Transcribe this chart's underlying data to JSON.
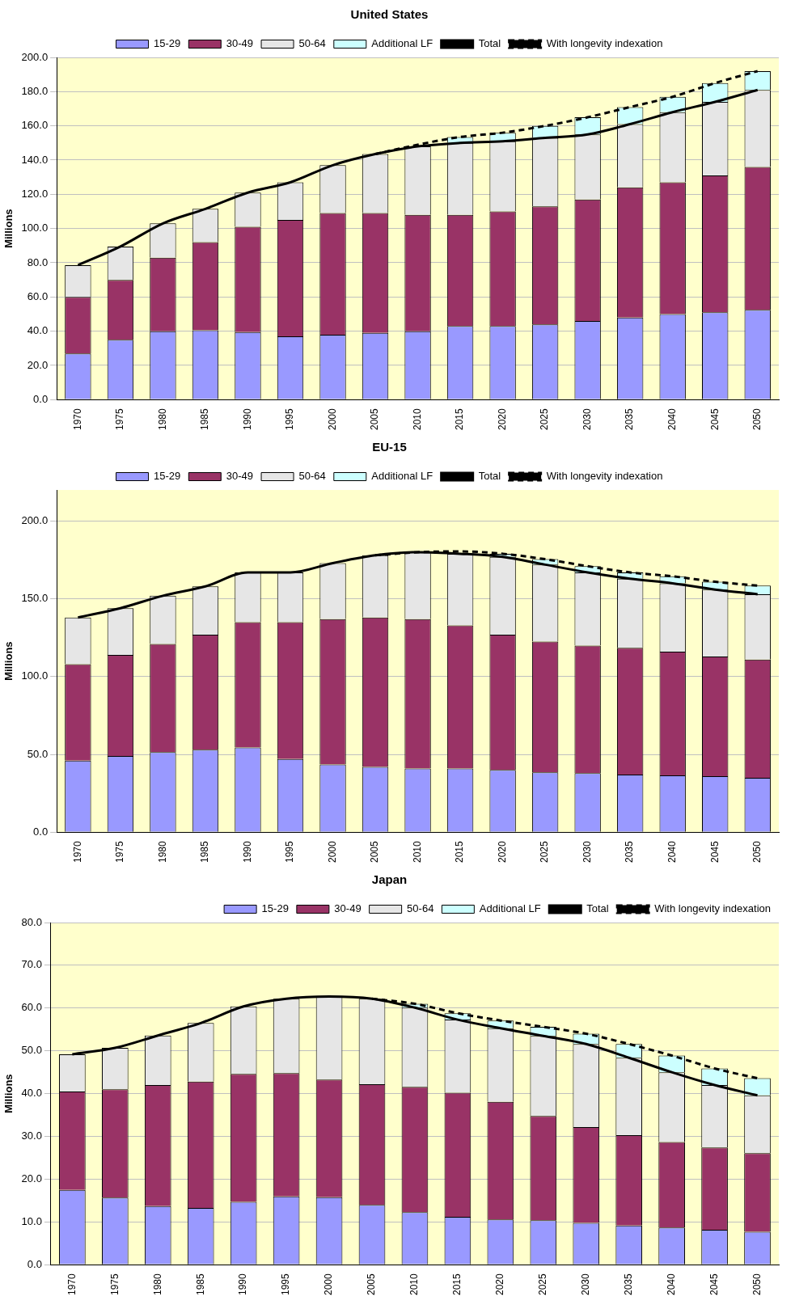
{
  "chart_data": [
    {
      "type": "bar",
      "title": "United States",
      "ylabel": "Millions",
      "stacked": true,
      "legend": "top",
      "grid": "y",
      "ylim": [
        0,
        200
      ],
      "yticks": [
        {
          "value": 0,
          "label": "0.0"
        },
        {
          "value": 20,
          "label": "20.0"
        },
        {
          "value": 40,
          "label": "40.0"
        },
        {
          "value": 60,
          "label": "60.0"
        },
        {
          "value": 80,
          "label": "80.0"
        },
        {
          "value": 100,
          "label": "100.0"
        },
        {
          "value": 120,
          "label": "120.0"
        },
        {
          "value": 140,
          "label": "140.0"
        },
        {
          "value": 160,
          "label": "160.0"
        },
        {
          "value": 180,
          "label": "180.0"
        },
        {
          "value": 200,
          "label": "200.0"
        }
      ],
      "categories": [
        "1970",
        "1975",
        "1980",
        "1985",
        "1990",
        "1995",
        "2000",
        "2005",
        "2010",
        "2015",
        "2020",
        "2025",
        "2030",
        "2035",
        "2040",
        "2045",
        "2050"
      ],
      "series": [
        {
          "name": "15-29",
          "color": "#9999ff",
          "values": [
            27,
            35,
            40,
            40.5,
            39.5,
            37,
            38,
            39,
            40,
            43,
            43,
            44,
            46,
            48,
            50,
            51,
            52.5
          ]
        },
        {
          "name": "30-49",
          "color": "#993366",
          "values": [
            33,
            35,
            43,
            51.5,
            61.5,
            68,
            71,
            70,
            68,
            65,
            67,
            69,
            71,
            76,
            77,
            80,
            83.5
          ]
        },
        {
          "name": "50-64",
          "color": "#e6e6e6",
          "values": [
            18.6,
            19.5,
            20,
            19.5,
            20,
            22,
            28,
            34.5,
            40,
            42,
            41,
            40,
            38,
            37,
            41,
            43,
            45
          ]
        },
        {
          "name": "Additional LF",
          "color": "#ccffff",
          "values": [
            null,
            null,
            null,
            null,
            null,
            null,
            null,
            null,
            null,
            3.5,
            5,
            7,
            10,
            10,
            9,
            11,
            11
          ]
        },
        {
          "name": "Total",
          "type": "line",
          "color": "#000000",
          "line_style": "solid",
          "values": [
            78.6,
            89.5,
            103,
            111.5,
            121,
            127,
            137,
            143.5,
            148,
            150,
            151,
            153,
            155,
            161,
            168,
            174,
            181
          ]
        },
        {
          "name": "With longevity indexation",
          "type": "line",
          "color": "#000000",
          "line_style": "dashed",
          "values": [
            null,
            null,
            null,
            null,
            null,
            null,
            null,
            143.5,
            149,
            153.5,
            156,
            160,
            165,
            171,
            177,
            185,
            192
          ]
        }
      ]
    },
    {
      "type": "bar",
      "title": "EU-15",
      "ylabel": "Millions",
      "stacked": true,
      "legend": "top",
      "grid": "y",
      "ylim": [
        0,
        220
      ],
      "yticks": [
        {
          "value": 0,
          "label": "0.0"
        },
        {
          "value": 50,
          "label": "50.0"
        },
        {
          "value": 100,
          "label": "100.0"
        },
        {
          "value": 150,
          "label": "150.0"
        },
        {
          "value": 200,
          "label": "200.0"
        }
      ],
      "categories": [
        "1970",
        "1975",
        "1980",
        "1985",
        "1990",
        "1995",
        "2000",
        "2005",
        "2010",
        "2015",
        "2020",
        "2025",
        "2030",
        "2035",
        "2040",
        "2045",
        "2050"
      ],
      "series": [
        {
          "name": "15-29",
          "color": "#9999ff",
          "values": [
            46,
            49,
            51.5,
            53,
            54.5,
            47,
            43.5,
            42,
            41,
            41,
            40,
            38.5,
            38,
            37,
            36.5,
            36,
            35
          ]
        },
        {
          "name": "30-49",
          "color": "#993366",
          "values": [
            62,
            65,
            69.5,
            74,
            80.5,
            88,
            93.5,
            96,
            96,
            92,
            87,
            84,
            82,
            81.5,
            79.5,
            77,
            76
          ]
        },
        {
          "name": "50-64",
          "color": "#e6e6e6",
          "values": [
            30,
            30,
            31,
            31,
            32,
            32,
            36,
            40,
            43,
            46,
            50,
            49.5,
            47,
            44.5,
            44,
            43,
            42
          ]
        },
        {
          "name": "Additional LF",
          "color": "#ccffff",
          "values": [
            null,
            null,
            null,
            null,
            null,
            null,
            null,
            null,
            null,
            null,
            2,
            3.5,
            4,
            4,
            4.5,
            5,
            5.5
          ]
        },
        {
          "name": "Total",
          "type": "line",
          "color": "#000000",
          "line_style": "solid",
          "values": [
            138,
            144,
            152,
            158,
            167,
            167,
            173,
            178,
            180,
            179,
            177,
            172,
            167,
            163,
            160,
            156,
            153
          ]
        },
        {
          "name": "With longevity indexation",
          "type": "line",
          "color": "#000000",
          "line_style": "dashed",
          "values": [
            null,
            null,
            null,
            null,
            null,
            null,
            null,
            178,
            180,
            180.5,
            179,
            175.5,
            171,
            167,
            164.5,
            161,
            158.5
          ]
        }
      ]
    },
    {
      "type": "bar",
      "title": "Japan",
      "ylabel": "Millions",
      "stacked": true,
      "legend": "top right",
      "grid": "y",
      "ylim": [
        0,
        80
      ],
      "yticks": [
        {
          "value": 0,
          "label": "0.0"
        },
        {
          "value": 10,
          "label": "10.0"
        },
        {
          "value": 20,
          "label": "20.0"
        },
        {
          "value": 30,
          "label": "30.0"
        },
        {
          "value": 40,
          "label": "40.0"
        },
        {
          "value": 50,
          "label": "50.0"
        },
        {
          "value": 60,
          "label": "60.0"
        },
        {
          "value": 70,
          "label": "70.0"
        },
        {
          "value": 80,
          "label": "80.0"
        }
      ],
      "categories": [
        "1970",
        "1975",
        "1980",
        "1985",
        "1990",
        "1995",
        "2000",
        "2005",
        "2010",
        "2015",
        "2020",
        "2025",
        "2030",
        "2035",
        "2040",
        "2045",
        "2050"
      ],
      "series": [
        {
          "name": "15-29",
          "color": "#9999ff",
          "values": [
            17.5,
            15.7,
            13.7,
            13.3,
            14.7,
            16,
            15.8,
            14,
            12.3,
            11.2,
            10.6,
            10.4,
            9.8,
            9.2,
            8.7,
            8.2,
            7.7
          ]
        },
        {
          "name": "30-49",
          "color": "#993366",
          "values": [
            23,
            25.3,
            28.3,
            29.5,
            29.9,
            28.8,
            27.5,
            28.2,
            29.3,
            29,
            27.5,
            24.4,
            22.4,
            21.1,
            20,
            19.2,
            18.4
          ]
        },
        {
          "name": "50-64",
          "color": "#e6e6e6",
          "values": [
            8.7,
            9.7,
            11.6,
            13.7,
            15.8,
            17.4,
            19.4,
            20,
            18.5,
            17.1,
            17.2,
            18.7,
            19.4,
            18.1,
            16.3,
            14.6,
            13.5
          ]
        },
        {
          "name": "Additional LF",
          "color": "#ccffff",
          "values": [
            null,
            null,
            null,
            null,
            null,
            null,
            null,
            null,
            0.9,
            1.5,
            1.8,
            2.1,
            2.4,
            3.2,
            3.9,
            3.9,
            4
          ]
        },
        {
          "name": "Total",
          "type": "line",
          "color": "#000000",
          "line_style": "solid",
          "values": [
            49.2,
            50.7,
            53.6,
            56.5,
            60.4,
            62.2,
            62.7,
            62.2,
            60.1,
            57.3,
            55.3,
            53.5,
            51.6,
            48.4,
            45,
            42,
            39.6
          ]
        },
        {
          "name": "With longevity indexation",
          "type": "line",
          "color": "#000000",
          "line_style": "dashed",
          "values": [
            null,
            null,
            null,
            null,
            null,
            null,
            null,
            62.2,
            61,
            58.8,
            57.1,
            55.6,
            54,
            51.6,
            48.9,
            45.9,
            43.6
          ]
        }
      ]
    }
  ]
}
